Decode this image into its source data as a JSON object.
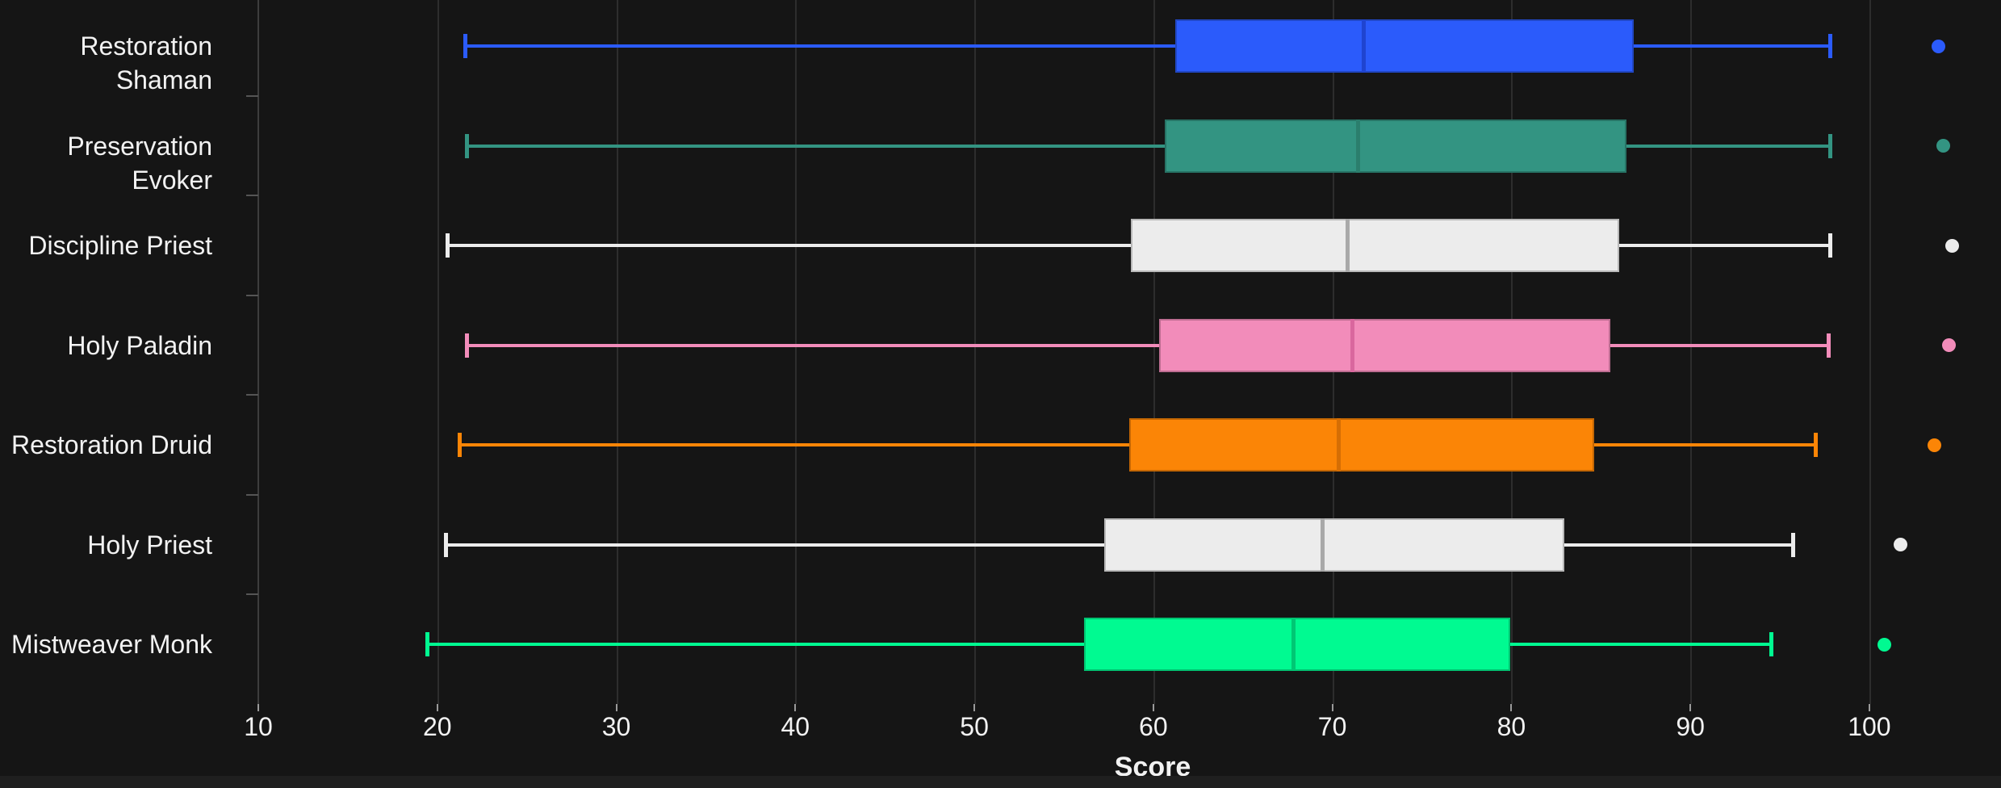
{
  "colors": {
    "background": "#151515",
    "bottom_strip": "#1F1F1F",
    "grid": "#2D2D2D",
    "spine": "#3D3D3D",
    "x_tick": "#9A9A9A",
    "y_tick": "#555555",
    "text": "#F2F2F2"
  },
  "chart_data": {
    "type": "boxplot",
    "orientation": "horizontal",
    "title": "",
    "xlabel": "Score",
    "ylabel": "",
    "x_ticks": [
      10,
      20,
      30,
      40,
      50,
      60,
      70,
      80,
      90,
      100
    ],
    "x_range": [
      10,
      107.4
    ],
    "grid": "vertical-only",
    "legend": "none",
    "categories": [
      "Restoration Shaman",
      "Preservation Evoker",
      "Discipline Priest",
      "Holy Paladin",
      "Restoration Druid",
      "Holy Priest",
      "Mistweaver Monk"
    ],
    "series": [
      {
        "name": "Restoration Shaman",
        "color": "#2B5BFB",
        "median_color": "#1F44D0",
        "whisker_low": 21.5,
        "q1": 61.2,
        "median": 71.7,
        "q3": 86.8,
        "whisker_high": 97.8,
        "outliers": [
          103.8
        ]
      },
      {
        "name": "Preservation Evoker",
        "color": "#339482",
        "median_color": "#2B7E6D",
        "whisker_low": 21.6,
        "q1": 60.6,
        "median": 71.4,
        "q3": 86.4,
        "whisker_high": 97.8,
        "outliers": [
          104.1
        ]
      },
      {
        "name": "Discipline Priest",
        "color": "#ECECEC",
        "median_color": "#A9A9A9",
        "whisker_low": 20.5,
        "q1": 58.7,
        "median": 70.8,
        "q3": 86.0,
        "whisker_high": 97.8,
        "outliers": [
          104.6
        ]
      },
      {
        "name": "Holy Paladin",
        "color": "#F28CBA",
        "median_color": "#D9679E",
        "whisker_low": 21.6,
        "q1": 60.3,
        "median": 71.1,
        "q3": 85.5,
        "whisker_high": 97.7,
        "outliers": [
          104.4
        ]
      },
      {
        "name": "Restoration Druid",
        "color": "#FB8506",
        "median_color": "#D56E04",
        "whisker_low": 21.2,
        "q1": 58.6,
        "median": 70.3,
        "q3": 84.6,
        "whisker_high": 97.0,
        "outliers": [
          103.6
        ]
      },
      {
        "name": "Holy Priest",
        "color": "#ECECEC",
        "median_color": "#A9A9A9",
        "whisker_low": 20.4,
        "q1": 57.2,
        "median": 69.4,
        "q3": 82.9,
        "whisker_high": 95.7,
        "outliers": [
          101.7
        ]
      },
      {
        "name": "Mistweaver Monk",
        "color": "#00FA91",
        "median_color": "#00C774",
        "whisker_low": 19.4,
        "q1": 56.1,
        "median": 67.8,
        "q3": 79.9,
        "whisker_high": 94.5,
        "outliers": [
          100.8
        ]
      }
    ]
  }
}
